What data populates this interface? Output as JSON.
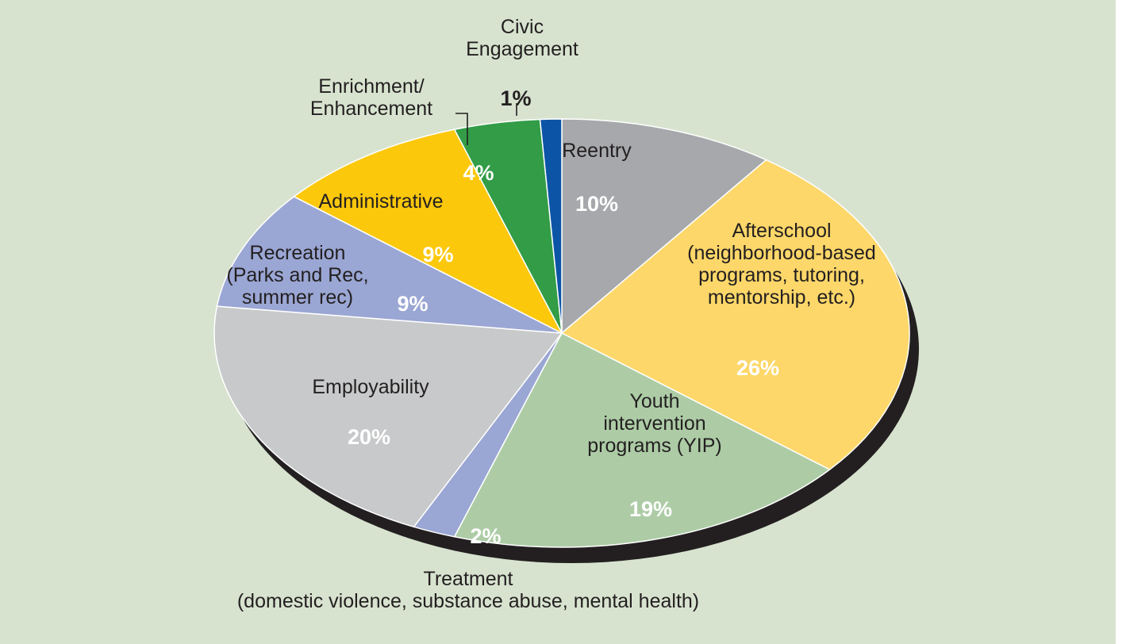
{
  "chart_data": {
    "type": "pie",
    "slices": [
      {
        "label": [
          "Reentry"
        ],
        "value": 10,
        "value_text": "10%",
        "color": "#a6a8ab"
      },
      {
        "label": [
          "Afterschool",
          "(neighborhood-based",
          "programs, tutoring,",
          "mentorship, etc.)"
        ],
        "value": 26,
        "value_text": "26%",
        "color": "#fdd769"
      },
      {
        "label": [
          "Youth",
          "intervention",
          "programs (YIP)"
        ],
        "value": 19,
        "value_text": "19%",
        "color": "#adcca6"
      },
      {
        "label": [
          "Treatment",
          "(domestic violence, substance abuse, mental health)"
        ],
        "value": 2,
        "value_text": "2%",
        "color": "#9aa6d3"
      },
      {
        "label": [
          "Employability"
        ],
        "value": 20,
        "value_text": "20%",
        "color": "#c8c9ca"
      },
      {
        "label": [
          "Recreation",
          "(Parks and Rec,",
          "summer rec)"
        ],
        "value": 9,
        "value_text": "9%",
        "color": "#9aa6d3"
      },
      {
        "label": [
          "Administrative"
        ],
        "value": 9,
        "value_text": "9%",
        "color": "#fcc80c"
      },
      {
        "label": [
          "Enrichment/",
          "Enhancement"
        ],
        "value": 4,
        "value_text": "4%",
        "color": "#329c47"
      },
      {
        "label": [
          "Civic",
          "Engagement"
        ],
        "value": 1,
        "value_text": "1%",
        "color": "#0c55a6"
      }
    ],
    "colors": {
      "background": "#d7e3cf",
      "depth": "#231f20",
      "slice_border": "#ffffff"
    }
  }
}
